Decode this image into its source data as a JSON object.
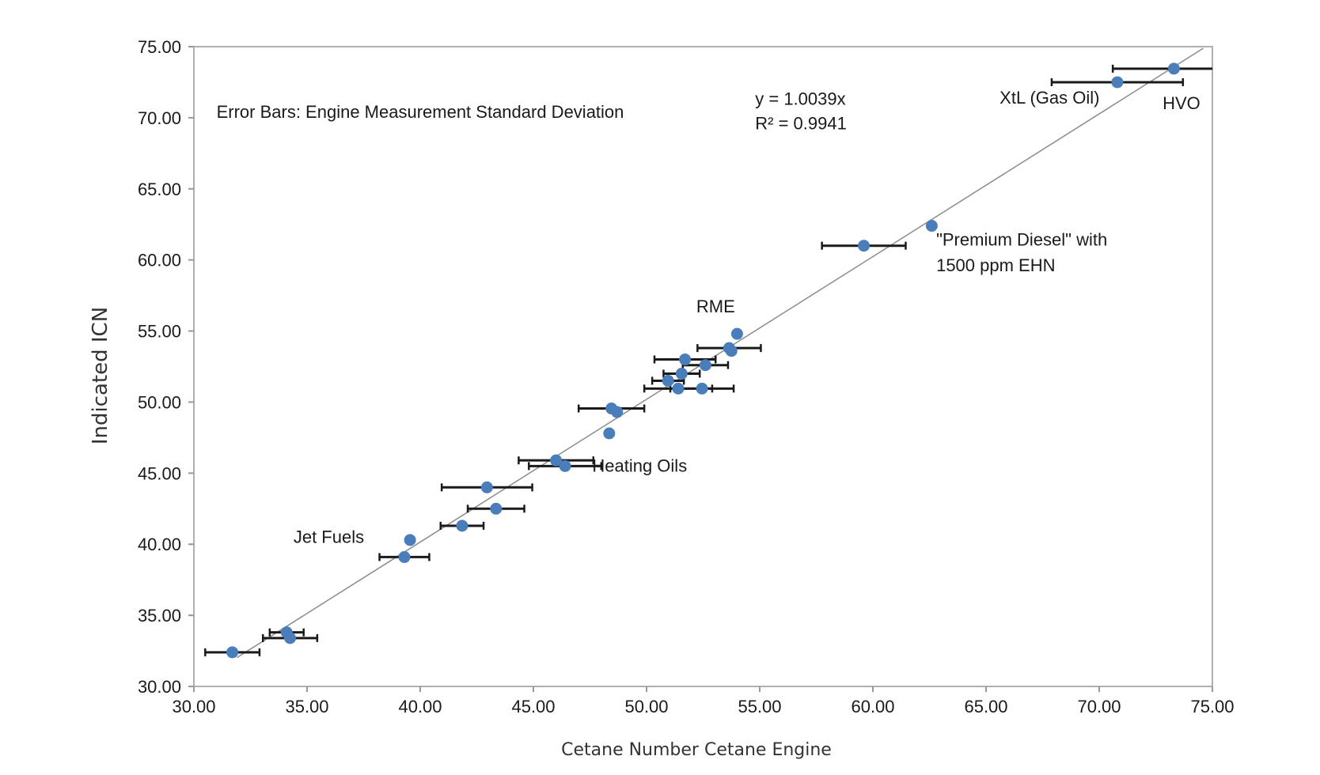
{
  "chart_data": {
    "type": "scatter",
    "title": "",
    "xlabel": "Cetane Number Cetane Engine",
    "ylabel": "Indicated ICN",
    "xlim": [
      30,
      75
    ],
    "ylim": [
      30,
      75
    ],
    "xticks": [
      "30.00",
      "35.00",
      "40.00",
      "45.00",
      "50.00",
      "55.00",
      "60.00",
      "65.00",
      "70.00",
      "75.00"
    ],
    "yticks": [
      "30.00",
      "35.00",
      "40.00",
      "45.00",
      "50.00",
      "55.00",
      "60.00",
      "65.00",
      "70.00",
      "75.00"
    ],
    "grid": false,
    "marker_color": "#4a7ebb",
    "errorbar_color": "#1a1a1a",
    "trendline_color": "#8c8c8c",
    "trendline": {
      "slope": 1.0039,
      "intercept": 0,
      "x_range": [
        31.9,
        74.6
      ]
    },
    "points": [
      {
        "x": 31.7,
        "y": 32.4,
        "xerr": 1.2
      },
      {
        "x": 34.1,
        "y": 33.8,
        "xerr": 0.75
      },
      {
        "x": 34.25,
        "y": 33.4,
        "xerr": 1.2
      },
      {
        "x": 39.3,
        "y": 39.1,
        "xerr": 1.1
      },
      {
        "x": 39.55,
        "y": 40.3,
        "xerr": 0
      },
      {
        "x": 41.85,
        "y": 41.3,
        "xerr": 0.95
      },
      {
        "x": 43.35,
        "y": 42.5,
        "xerr": 1.25
      },
      {
        "x": 42.95,
        "y": 44.0,
        "xerr": 2.0
      },
      {
        "x": 46.0,
        "y": 45.9,
        "xerr": 1.65
      },
      {
        "x": 46.4,
        "y": 45.5,
        "xerr": 1.6
      },
      {
        "x": 48.35,
        "y": 47.8,
        "xerr": 0
      },
      {
        "x": 48.45,
        "y": 49.55,
        "xerr": 1.45
      },
      {
        "x": 48.7,
        "y": 49.3,
        "xerr": 0
      },
      {
        "x": 51.4,
        "y": 50.95,
        "xerr": 1.5
      },
      {
        "x": 52.45,
        "y": 50.95,
        "xerr": 1.4
      },
      {
        "x": 50.95,
        "y": 51.5,
        "xerr": 0.7
      },
      {
        "x": 51.55,
        "y": 52.0,
        "xerr": 0.8
      },
      {
        "x": 51.7,
        "y": 53.0,
        "xerr": 1.35
      },
      {
        "x": 52.6,
        "y": 52.6,
        "xerr": 1.0
      },
      {
        "x": 53.65,
        "y": 53.8,
        "xerr": 1.4
      },
      {
        "x": 53.75,
        "y": 53.6,
        "xerr": 0
      },
      {
        "x": 54.0,
        "y": 54.8,
        "xerr": 0
      },
      {
        "x": 59.6,
        "y": 61.0,
        "xerr": 1.85
      },
      {
        "x": 62.6,
        "y": 62.4,
        "xerr": 0
      },
      {
        "x": 70.8,
        "y": 72.5,
        "xerr": 2.9
      },
      {
        "x": 73.3,
        "y": 73.45,
        "xerr": 2.7
      }
    ],
    "annotations": [
      {
        "text": "Error Bars: Engine Measurement Standard Deviation",
        "x": 31.0,
        "y": 70.0
      },
      {
        "text": "y = 1.0039x",
        "x": 54.8,
        "y": 70.9
      },
      {
        "text": "R² = 0.9941",
        "x": 54.8,
        "y": 69.2
      },
      {
        "text": "XtL (Gas Oil)",
        "x": 65.6,
        "y": 71.0
      },
      {
        "text": "HVO",
        "x": 72.8,
        "y": 70.6
      },
      {
        "text": "\"Premium Diesel\" with",
        "x": 62.8,
        "y": 61.0
      },
      {
        "text": "1500 ppm EHN",
        "x": 62.8,
        "y": 59.2
      },
      {
        "text": "RME",
        "x": 52.2,
        "y": 56.3
      },
      {
        "text": "Heating Oils",
        "x": 47.6,
        "y": 45.1
      },
      {
        "text": "Jet Fuels",
        "x": 34.4,
        "y": 40.1
      }
    ]
  }
}
